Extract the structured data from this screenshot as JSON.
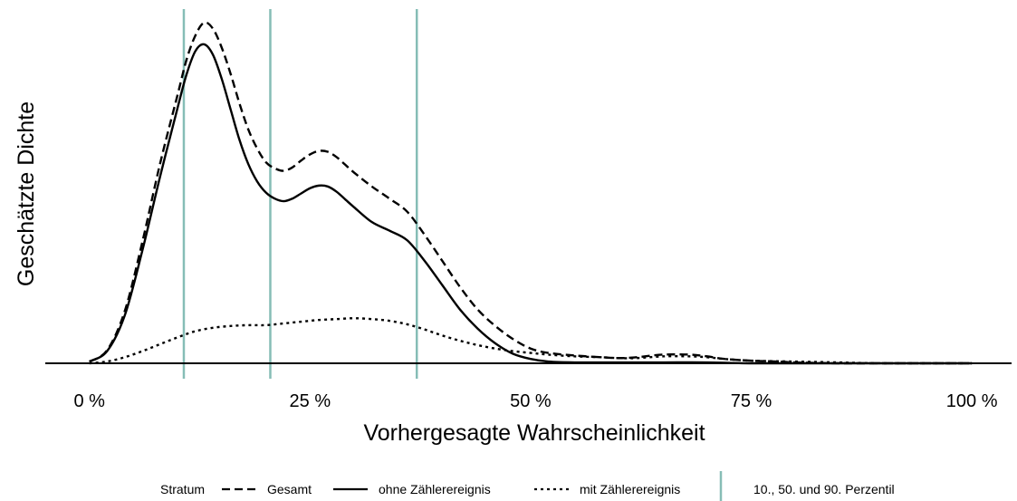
{
  "chart_data": {
    "type": "line",
    "xlabel": "Vorhergesagte Wahrscheinlichkeit",
    "ylabel": "Geschätzte Dichte",
    "xlim": [
      -0.05,
      1.045
    ],
    "ylim": [
      0,
      3.93
    ],
    "x_ticks": [
      0,
      0.25,
      0.5,
      0.75,
      1.0
    ],
    "x_tick_labels": [
      "0 %",
      "25 %",
      "50 %",
      "75 %",
      "100 %"
    ],
    "y_ticks_shown": false,
    "grid": false,
    "legend": {
      "position": "bottom",
      "title": "Stratum",
      "percentile_label": "10., 50. und 90. Perzentil"
    },
    "series": [
      {
        "name": "Gesamt",
        "linestyle": "dashed",
        "color": "#000000",
        "x": [
          0,
          0.02,
          0.04,
          0.06,
          0.08,
          0.1,
          0.11,
          0.12,
          0.13,
          0.14,
          0.15,
          0.16,
          0.17,
          0.18,
          0.19,
          0.2,
          0.21,
          0.22,
          0.23,
          0.24,
          0.25,
          0.26,
          0.27,
          0.28,
          0.29,
          0.3,
          0.32,
          0.34,
          0.36,
          0.38,
          0.4,
          0.42,
          0.44,
          0.46,
          0.48,
          0.5,
          0.52,
          0.55,
          0.58,
          0.6,
          0.62,
          0.65,
          0.68,
          0.7,
          0.72,
          0.75,
          0.78,
          0.8,
          0.85,
          0.9,
          0.95,
          1.0
        ],
        "y": [
          0.02,
          0.15,
          0.6,
          1.4,
          2.3,
          3.1,
          3.5,
          3.78,
          3.93,
          3.86,
          3.64,
          3.34,
          3.0,
          2.7,
          2.48,
          2.32,
          2.25,
          2.22,
          2.26,
          2.34,
          2.41,
          2.45,
          2.44,
          2.38,
          2.29,
          2.2,
          2.04,
          1.9,
          1.75,
          1.48,
          1.18,
          0.88,
          0.62,
          0.43,
          0.28,
          0.17,
          0.12,
          0.09,
          0.07,
          0.06,
          0.07,
          0.1,
          0.1,
          0.08,
          0.05,
          0.03,
          0.02,
          0.01,
          0.0,
          0.0,
          0.0,
          0.0
        ]
      },
      {
        "name": "ohne Zählerereignis",
        "linestyle": "solid",
        "color": "#000000",
        "x": [
          0,
          0.02,
          0.04,
          0.06,
          0.08,
          0.1,
          0.11,
          0.12,
          0.13,
          0.14,
          0.15,
          0.16,
          0.17,
          0.18,
          0.19,
          0.2,
          0.21,
          0.22,
          0.23,
          0.24,
          0.25,
          0.26,
          0.27,
          0.28,
          0.29,
          0.3,
          0.32,
          0.34,
          0.36,
          0.38,
          0.4,
          0.42,
          0.44,
          0.46,
          0.48,
          0.5,
          0.52,
          0.55,
          0.6,
          0.65,
          0.7,
          0.75,
          0.8,
          0.9,
          1.0
        ],
        "y": [
          0.02,
          0.14,
          0.55,
          1.3,
          2.15,
          2.95,
          3.33,
          3.6,
          3.68,
          3.56,
          3.28,
          2.93,
          2.58,
          2.3,
          2.1,
          1.97,
          1.9,
          1.87,
          1.9,
          1.96,
          2.02,
          2.05,
          2.04,
          1.98,
          1.89,
          1.8,
          1.63,
          1.53,
          1.42,
          1.18,
          0.9,
          0.62,
          0.4,
          0.23,
          0.11,
          0.05,
          0.02,
          0.01,
          0.01,
          0.01,
          0.01,
          0.0,
          0.0,
          0.0,
          0.0
        ]
      },
      {
        "name": "mit Zählerereignis",
        "linestyle": "dotted",
        "color": "#000000",
        "x": [
          0,
          0.02,
          0.04,
          0.06,
          0.08,
          0.1,
          0.12,
          0.14,
          0.16,
          0.18,
          0.2,
          0.22,
          0.24,
          0.26,
          0.28,
          0.3,
          0.32,
          0.34,
          0.36,
          0.38,
          0.4,
          0.42,
          0.44,
          0.46,
          0.48,
          0.5,
          0.52,
          0.55,
          0.58,
          0.6,
          0.62,
          0.65,
          0.68,
          0.7,
          0.72,
          0.75,
          0.8,
          0.85,
          0.9,
          1.0
        ],
        "y": [
          0.0,
          0.02,
          0.07,
          0.14,
          0.22,
          0.3,
          0.37,
          0.41,
          0.43,
          0.44,
          0.44,
          0.46,
          0.48,
          0.5,
          0.51,
          0.52,
          0.51,
          0.49,
          0.45,
          0.39,
          0.32,
          0.26,
          0.21,
          0.17,
          0.14,
          0.12,
          0.1,
          0.08,
          0.07,
          0.06,
          0.06,
          0.08,
          0.08,
          0.07,
          0.05,
          0.03,
          0.02,
          0.01,
          0.0,
          0.0
        ]
      }
    ],
    "percentiles": [
      {
        "label": "10.",
        "x": 0.107
      },
      {
        "label": "50.",
        "x": 0.205
      },
      {
        "label": "90.",
        "x": 0.371
      }
    ],
    "colors": {
      "percentile_line": "#86bdb6",
      "series_line": "#000000",
      "axis_line": "#000000"
    }
  }
}
